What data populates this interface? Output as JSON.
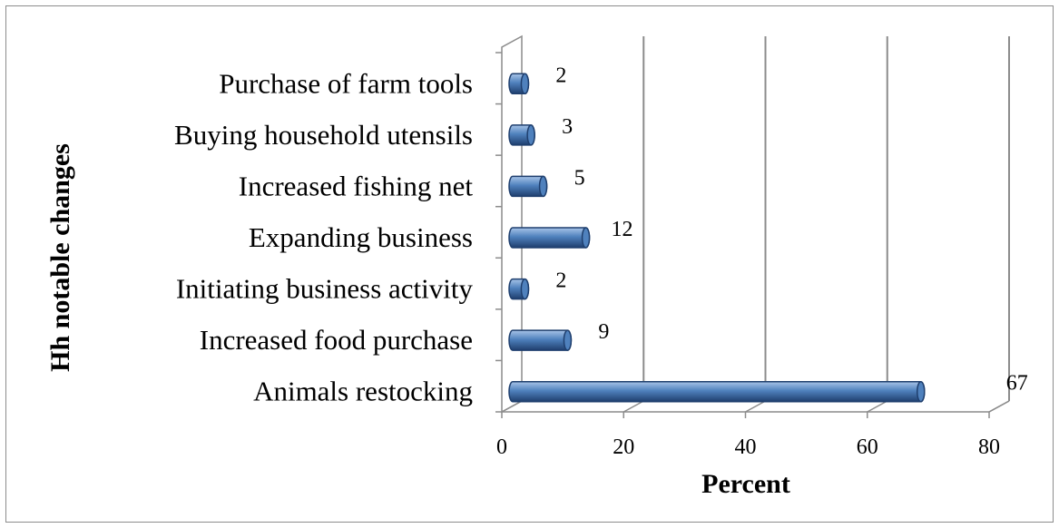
{
  "chart_data": {
    "type": "bar",
    "orientation": "horizontal",
    "style": "3d-cylinder",
    "categories": [
      "Animals restocking",
      "Increased food purchase",
      "Initiating business activity",
      "Expanding business",
      "Increased fishing net",
      "Buying household utensils",
      "Purchase of farm tools"
    ],
    "values": [
      67,
      9,
      2,
      12,
      5,
      3,
      2
    ],
    "data_labels": [
      "67",
      "9",
      "2",
      "12",
      "5",
      "3",
      "2"
    ],
    "xlabel": "Percent",
    "ylabel": "Hh notable changes",
    "xlim": [
      0,
      80
    ],
    "xticks": [
      0,
      20,
      40,
      60,
      80
    ],
    "grid": true,
    "legend": "none",
    "colors": {
      "bar_fill": "#4f81bd",
      "bar_dark": "#1f3f6e",
      "bar_light": "#a8c4e8",
      "gridline": "#8c8c8c",
      "frame": "#8c8c8c"
    }
  }
}
